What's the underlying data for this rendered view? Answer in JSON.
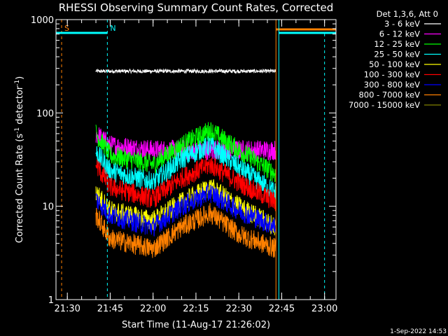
{
  "chart_data": {
    "type": "line",
    "title": "RHESSI Observing Summary Count Rates, Corrected",
    "xlabel": "Start Time (11-Aug-17 21:26:02)",
    "ylabel_parts": [
      "Corrected Count Rate (s",
      "-1",
      " detector",
      "-1",
      ")"
    ],
    "yscale": "log",
    "ylim": [
      1,
      1000
    ],
    "xlim_minutes": [
      21.3,
      21.3,
      1
    ],
    "x_range": [
      "21:26:02",
      "23:04:00"
    ],
    "x_ticks": [
      "21:30",
      "21:45",
      "22:00",
      "22:15",
      "22:30",
      "22:45",
      "23:00"
    ],
    "y_ticks": [
      "1",
      "10",
      "100",
      "1000"
    ],
    "legend_header": "Det 1,3,6, Att 0",
    "legend": [
      {
        "name": "3 - 6 keV",
        "color": "#ffffff"
      },
      {
        "name": "6 - 12 keV",
        "color": "#ff00ff"
      },
      {
        "name": "12 - 25 keV",
        "color": "#00ff00"
      },
      {
        "name": "25 - 50 keV",
        "color": "#00ffff"
      },
      {
        "name": "50 - 100 keV",
        "color": "#ffff00"
      },
      {
        "name": "100 - 300 keV",
        "color": "#ff0000"
      },
      {
        "name": "300 - 800 keV",
        "color": "#0000ff"
      },
      {
        "name": "800 - 7000 keV",
        "color": "#ff8000"
      },
      {
        "name": "7000 - 15000 keV",
        "color": "#808000"
      }
    ],
    "series": [
      {
        "name": "3 - 6 keV",
        "color": "#000000",
        "x": [
          "21:40",
          "22:43"
        ],
        "y": [
          280,
          280
        ]
      },
      {
        "name": "6 - 12 keV",
        "color": "#ff00ff",
        "x": [
          "21:40",
          "21:45",
          "22:00",
          "22:15",
          "22:30",
          "22:43"
        ],
        "y": [
          60,
          45,
          40,
          40,
          40,
          40
        ]
      },
      {
        "name": "12 - 25 keV",
        "color": "#00ff00",
        "x": [
          "21:40",
          "21:45",
          "22:00",
          "22:10",
          "22:20",
          "22:30",
          "22:43"
        ],
        "y": [
          60,
          35,
          28,
          45,
          65,
          40,
          22
        ]
      },
      {
        "name": "25 - 50 keV",
        "color": "#00ffff",
        "x": [
          "21:40",
          "21:45",
          "22:00",
          "22:10",
          "22:20",
          "22:30",
          "22:43"
        ],
        "y": [
          38,
          24,
          18,
          32,
          45,
          26,
          14
        ]
      },
      {
        "name": "100 - 300 keV",
        "color": "#ff0000",
        "x": [
          "21:40",
          "21:45",
          "22:00",
          "22:10",
          "22:20",
          "22:30",
          "22:43"
        ],
        "y": [
          28,
          16,
          12,
          20,
          28,
          18,
          11
        ]
      },
      {
        "name": "50 - 100 keV",
        "color": "#ffff00",
        "x": [
          "21:40",
          "21:45",
          "22:00",
          "22:10",
          "22:20",
          "22:30",
          "22:43"
        ],
        "y": [
          14,
          9,
          7,
          11,
          16,
          10,
          6
        ]
      },
      {
        "name": "300 - 800 keV",
        "color": "#0000ff",
        "x": [
          "21:40",
          "21:45",
          "22:00",
          "22:10",
          "22:20",
          "22:30",
          "22:43"
        ],
        "y": [
          12,
          8,
          6,
          10,
          14,
          9,
          6
        ]
      },
      {
        "name": "800 - 7000 keV",
        "color": "#ff8000",
        "x": [
          "21:40",
          "21:45",
          "22:00",
          "22:10",
          "22:20",
          "22:30",
          "22:43"
        ],
        "y": [
          8,
          4.5,
          3.5,
          6,
          8.5,
          5,
          3.5
        ]
      }
    ],
    "markers": [
      {
        "label": "S",
        "color": "#ff8000",
        "time": "21:28"
      },
      {
        "label": "N",
        "color": "#00ffff",
        "time": "21:44"
      }
    ],
    "grid": false,
    "timestamp": "1-Sep-2022 14:53"
  }
}
